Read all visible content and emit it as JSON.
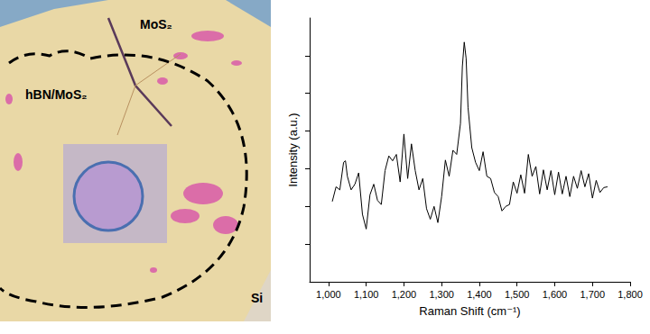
{
  "chart_data": {
    "type": "line",
    "x_label": "Raman Shift (cm⁻¹)",
    "y_label": "Intensity (a.u.)",
    "x": [
      1010,
      1020,
      1030,
      1040,
      1045,
      1050,
      1060,
      1070,
      1080,
      1090,
      1100,
      1110,
      1120,
      1130,
      1140,
      1150,
      1160,
      1170,
      1180,
      1190,
      1200,
      1210,
      1220,
      1230,
      1240,
      1250,
      1260,
      1270,
      1280,
      1290,
      1300,
      1310,
      1320,
      1330,
      1340,
      1350,
      1355,
      1360,
      1365,
      1370,
      1380,
      1390,
      1400,
      1410,
      1420,
      1430,
      1440,
      1450,
      1460,
      1470,
      1480,
      1490,
      1500,
      1510,
      1520,
      1530,
      1540,
      1550,
      1560,
      1570,
      1580,
      1590,
      1600,
      1610,
      1620,
      1630,
      1640,
      1650,
      1660,
      1670,
      1680,
      1690,
      1700,
      1710,
      1720,
      1730,
      1740
    ],
    "values": [
      2.13,
      2.52,
      2.44,
      3.17,
      3.21,
      2.8,
      2.44,
      2.59,
      2.89,
      1.79,
      1.4,
      2.31,
      2.59,
      2.16,
      2.05,
      2.95,
      3.34,
      3.21,
      3.38,
      2.65,
      3.92,
      2.74,
      3.66,
      2.95,
      2.44,
      2.74,
      1.94,
      1.66,
      2.0,
      1.57,
      2.26,
      3.23,
      2.8,
      3.49,
      3.38,
      4.2,
      5.71,
      6.36,
      5.93,
      4.63,
      3.56,
      3.17,
      2.95,
      3.45,
      2.8,
      2.74,
      2.37,
      2.26,
      1.88,
      2.0,
      2.05,
      2.65,
      2.35,
      2.84,
      2.35,
      3.38,
      2.8,
      3.06,
      2.33,
      2.97,
      2.44,
      2.95,
      2.31,
      2.91,
      2.33,
      2.8,
      2.26,
      2.8,
      2.48,
      2.95,
      2.52,
      2.87,
      2.22,
      2.69,
      2.37,
      2.5,
      2.52
    ],
    "color": "#000000",
    "xlim": [
      950,
      1800
    ],
    "xticks": [
      1000,
      1100,
      1200,
      1300,
      1400,
      1500,
      1600,
      1700,
      1800
    ],
    "ylim": [
      0,
      7
    ],
    "yticks": [
      1,
      2,
      3,
      4,
      5,
      6
    ],
    "tick_labels": "x",
    "grid": false
  },
  "micrograph": {
    "labels": [
      "MoS₂",
      "hBN/MoS₂",
      "Si"
    ]
  }
}
